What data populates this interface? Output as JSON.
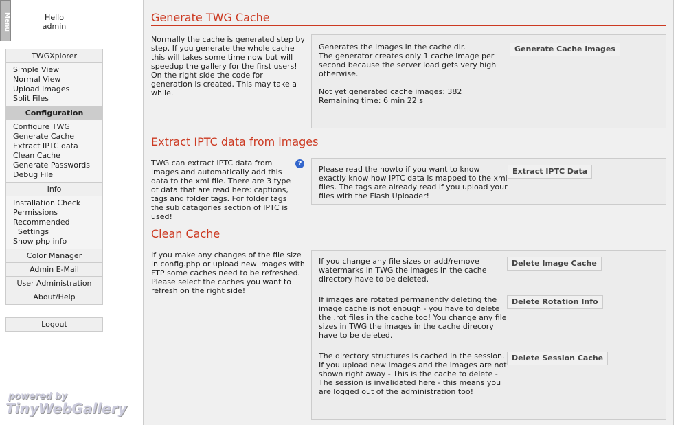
{
  "sidebar": {
    "menu_tab": "Menu",
    "hello": "Hello",
    "user": "admin",
    "groups": [
      {
        "header": "TWGXplorer",
        "items": [
          "Simple View",
          "Normal View",
          "Upload Images",
          "Split Files"
        ]
      },
      {
        "header": "Configuration",
        "active": true,
        "items": [
          "Configure TWG",
          "Generate Cache",
          "Extract IPTC data",
          "Clean Cache",
          "Generate Passwords",
          "Debug File"
        ]
      },
      {
        "header": "Info",
        "items": [
          "Installation Check",
          "Permissions",
          "Recommended",
          "  Settings",
          "Show php info"
        ]
      },
      {
        "header": "Color Manager"
      },
      {
        "header": "Admin E-Mail"
      },
      {
        "header": "User Administration"
      },
      {
        "header": "About/Help"
      }
    ],
    "logout": "Logout",
    "logo_line1": "powered by",
    "logo_line2": "TinyWebGallery"
  },
  "sections": {
    "cache": {
      "title": "Generate TWG Cache",
      "left": "Normally the cache is generated step by step. If you generate the whole cache this will takes some time now but will speedup the gallery for the first users!\nOn the right side the code for generation is created. This may take a while.",
      "right": "Generates the images in the cache dir.\nThe generator creates only 1 cache image per second because the server load gets very high otherwise.\n\nNot yet generated cache images: 382\nRemaining time: 6 min 22 s",
      "button": "Generate Cache images"
    },
    "iptc": {
      "title": "Extract IPTC data from images",
      "left": "TWG can extract IPTC data from images and automatically add this data to the xml file. There are 3 type of data that are read here: captions, tags and folder tags. For folder tags the sub catagories section of IPTC is used!",
      "right": "Please read the howto if you want to know exactly know how IPTC data is mapped to the xml files. The tags are already read if you upload your files with the Flash Uploader!",
      "button": "Extract IPTC Data",
      "help_icon": "?"
    },
    "clean": {
      "title": "Clean Cache",
      "left": "If you make any changes of the file size in config.php or upload new images with FTP some caches need to be refreshed. Please select the caches you want to refresh on the right side!",
      "items": [
        {
          "text": "If you change any file sizes or add/remove watermarks in TWG the images in the cache directory have to be deleted.",
          "button": "Delete Image Cache"
        },
        {
          "text": "If images are rotated permanently deleting the image cache is not enough - you have to delete the .rot files in the cache too! You change any file sizes in TWG the images in the cache direcory have to be deleted.",
          "button": "Delete Rotation Info"
        },
        {
          "text": "The directory structures is cached in the session. If you upload new images and the images are not shown right away - This is the cache to delete - The session is invalidated here - this means you are logged out of the administration too!",
          "button": "Delete Session Cache"
        }
      ]
    }
  }
}
